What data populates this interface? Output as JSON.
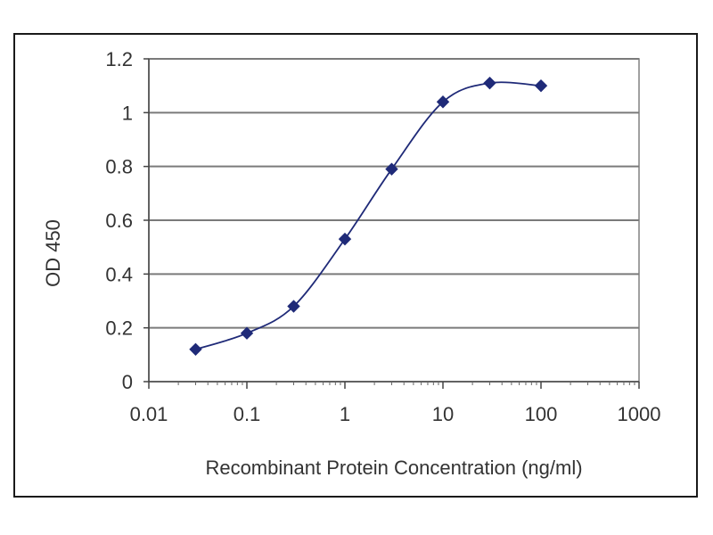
{
  "chart_data": {
    "type": "line",
    "title": "",
    "xlabel": "Recombinant Protein Concentration (ng/ml)",
    "ylabel": "OD 450",
    "x_scale": "log",
    "xlim": [
      0.01,
      1000
    ],
    "ylim": [
      0,
      1.2
    ],
    "x_ticks": [
      "0.01",
      "0.1",
      "1",
      "10",
      "100",
      "1000"
    ],
    "y_ticks": [
      "0",
      "0.2",
      "0.4",
      "0.6",
      "0.8",
      "1",
      "1.2"
    ],
    "grid": "horizontal",
    "legend": "none",
    "series": [
      {
        "color": "#1f2a78",
        "marker": "diamond",
        "smooth": true,
        "x": [
          0.03,
          0.1,
          0.3,
          1,
          3,
          10,
          30,
          100
        ],
        "y": [
          0.12,
          0.18,
          0.28,
          0.53,
          0.79,
          1.04,
          1.11,
          1.1
        ]
      }
    ]
  }
}
